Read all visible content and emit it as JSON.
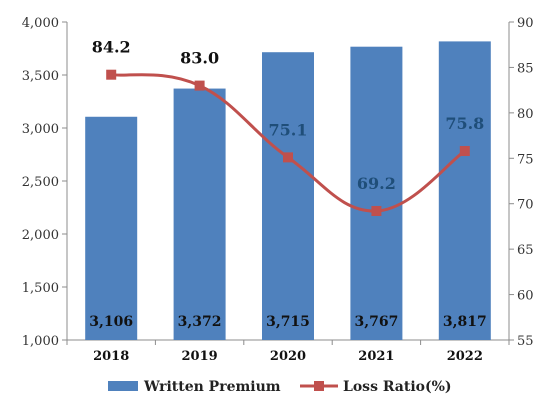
{
  "chart_data": {
    "type": "bar",
    "categories": [
      "2018",
      "2019",
      "2020",
      "2021",
      "2022"
    ],
    "series": [
      {
        "name": "Written Premium",
        "type": "bar",
        "axis": "left",
        "values": [
          3106,
          3372,
          3715,
          3767,
          3817
        ],
        "value_labels": [
          "3,106",
          "3,372",
          "3,715",
          "3,767",
          "3,817"
        ],
        "color": "#4f81bd"
      },
      {
        "name": "Loss Ratio(%)",
        "type": "line",
        "axis": "right",
        "values": [
          84.2,
          83.0,
          75.1,
          69.2,
          75.8
        ],
        "value_labels": [
          "84.2",
          "83.0",
          "75.1",
          "69.2",
          "75.8"
        ],
        "color": "#c0504d"
      }
    ],
    "y_left": {
      "min": 1000,
      "max": 4000,
      "ticks": [
        1000,
        1500,
        2000,
        2500,
        3000,
        3500,
        4000
      ],
      "tick_labels": [
        "1,000",
        "1,500",
        "2,000",
        "2,500",
        "3,000",
        "3,500",
        "4,000"
      ]
    },
    "y_right": {
      "min": 55,
      "max": 90,
      "ticks": [
        55,
        60,
        65,
        70,
        75,
        80,
        85,
        90
      ],
      "tick_labels": [
        "55",
        "60",
        "65",
        "70",
        "75",
        "80",
        "85",
        "90"
      ]
    },
    "title": "",
    "xlabel": "",
    "ylabel": "",
    "grid": false,
    "legend_position": "bottom",
    "line_label_colors": [
      "#111111",
      "#111111",
      "#1f4e79",
      "#1f4e79",
      "#1f4e79"
    ]
  }
}
